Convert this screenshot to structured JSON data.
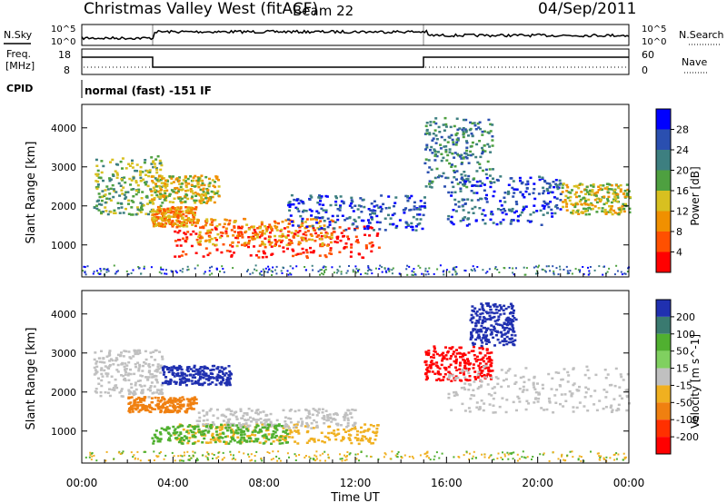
{
  "header": {
    "station": "Christmas Valley West (fitACF)",
    "beam": "Beam 22",
    "date": "04/Sep/2011"
  },
  "top_panels": {
    "nsky_label": "N.Sky",
    "nsearch_label": "N.Search",
    "noise_ticks_left": [
      "10^5",
      "10^0"
    ],
    "noise_ticks_right": [
      "10^5",
      "10^0"
    ],
    "freq_label_1": "Freq.",
    "freq_label_2": "[MHz]",
    "freq_ticks": [
      "18",
      "8"
    ],
    "nave_label": "Nave",
    "nave_ticks": [
      "60",
      "0"
    ],
    "cpid_label": "CPID",
    "cpid_text": "normal (fast) -151 IF"
  },
  "chart_data": [
    {
      "type": "heatmap",
      "name": "power",
      "ylabel": "Slant Range [km]",
      "yticks": [
        "4000",
        "3000",
        "2000",
        "1000"
      ],
      "ylim": [
        180,
        4600
      ],
      "colorbar_label": "Power [dB]",
      "colorbar_ticks": [
        "28",
        "24",
        "20",
        "16",
        "12",
        "8",
        "4"
      ],
      "colors": [
        "#0000ff",
        "#2a4fb0",
        "#3d7f80",
        "#4ea040",
        "#d8c020",
        "#f09000",
        "#ff5000",
        "#ff0000"
      ],
      "scatter_regions": [
        {
          "t": [
            0.5,
            3.5
          ],
          "r": [
            1800,
            3300
          ],
          "level": 3
        },
        {
          "t": [
            3.0,
            6.0
          ],
          "r": [
            2100,
            2800
          ],
          "level": 4
        },
        {
          "t": [
            3.0,
            5.0
          ],
          "r": [
            1500,
            2000
          ],
          "level": 5
        },
        {
          "t": [
            4.0,
            13.0
          ],
          "r": [
            700,
            1500
          ],
          "level": 7
        },
        {
          "t": [
            5.0,
            11.0
          ],
          "r": [
            1000,
            1700
          ],
          "level": 5
        },
        {
          "t": [
            9.0,
            15.0
          ],
          "r": [
            1400,
            2300
          ],
          "level": 1
        },
        {
          "t": [
            15.0,
            18.0
          ],
          "r": [
            2500,
            4300
          ],
          "level": 2
        },
        {
          "t": [
            16.0,
            21.0
          ],
          "r": [
            1500,
            2800
          ],
          "level": 1
        },
        {
          "t": [
            21.0,
            24.0
          ],
          "r": [
            1800,
            2600
          ],
          "level": 4
        }
      ]
    },
    {
      "type": "heatmap",
      "name": "velocity",
      "xlabel": "Time UT",
      "xticks": [
        "00:00",
        "04:00",
        "08:00",
        "12:00",
        "16:00",
        "20:00",
        "00:00"
      ],
      "xlim": [
        0,
        24
      ],
      "ylabel": "Slant Range [km]",
      "yticks": [
        "4000",
        "3000",
        "2000",
        "1000"
      ],
      "ylim": [
        180,
        4600
      ],
      "colorbar_label": "Velocity [m s^-1]",
      "colorbar_ticks": [
        "200",
        "100",
        "50",
        "15",
        "-15",
        "-50",
        "-100",
        "-200"
      ],
      "colors": [
        "#2030b0",
        "#3a7a70",
        "#50b030",
        "#80d060",
        "#c0c0c0",
        "#f0b020",
        "#f08010",
        "#ff3000",
        "#ff0000"
      ],
      "scatter_regions": [
        {
          "t": [
            0.5,
            3.5
          ],
          "r": [
            1900,
            3100
          ],
          "color": "#c0c0c0"
        },
        {
          "t": [
            3.5,
            6.5
          ],
          "r": [
            2200,
            2700
          ],
          "color": "#2030b0"
        },
        {
          "t": [
            2.0,
            5.0
          ],
          "r": [
            1500,
            1900
          ],
          "color": "#f08010"
        },
        {
          "t": [
            4.0,
            13.0
          ],
          "r": [
            700,
            1200
          ],
          "color": "#f0b020"
        },
        {
          "t": [
            5.0,
            12.0
          ],
          "r": [
            1100,
            1600
          ],
          "color": "#c0c0c0"
        },
        {
          "t": [
            3.0,
            9.0
          ],
          "r": [
            700,
            1200
          ],
          "color": "#50b030"
        },
        {
          "t": [
            15.0,
            18.0
          ],
          "r": [
            2300,
            3200
          ],
          "color": "#ff0000"
        },
        {
          "t": [
            17.0,
            19.0
          ],
          "r": [
            3200,
            4300
          ],
          "color": "#2030b0"
        },
        {
          "t": [
            16.0,
            24.0
          ],
          "r": [
            1500,
            2700
          ],
          "color": "#c0c0c0"
        }
      ]
    }
  ]
}
